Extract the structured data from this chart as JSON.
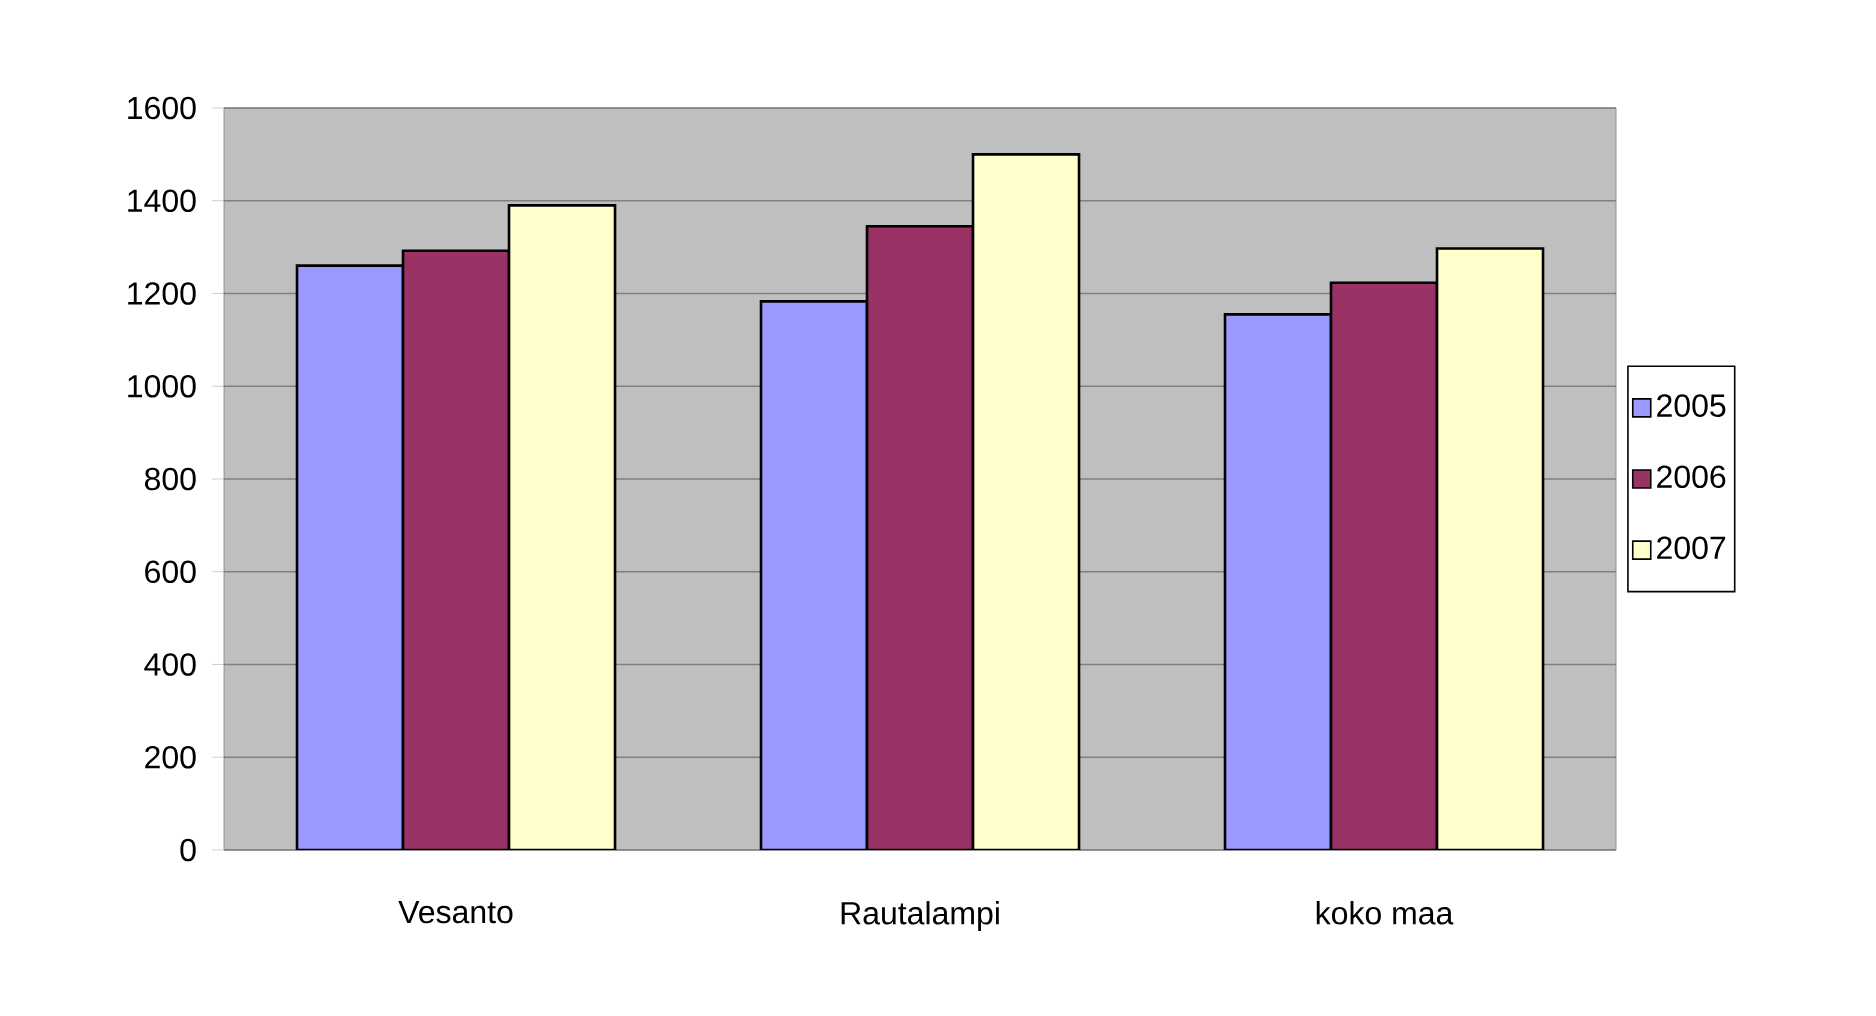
{
  "chart_data": {
    "type": "bar",
    "categories": [
      "Vesanto",
      "Rautalampi",
      "koko maa"
    ],
    "series": [
      {
        "name": "2005",
        "color": "#9999ff",
        "values": [
          1260,
          1183,
          1155
        ]
      },
      {
        "name": "2006",
        "color": "#993366",
        "values": [
          1292,
          1345,
          1223
        ]
      },
      {
        "name": "2007",
        "color": "#ffffcc",
        "values": [
          1390,
          1500,
          1297
        ]
      }
    ],
    "ylim": [
      0,
      1600
    ],
    "yticks": [
      0,
      200,
      400,
      600,
      800,
      1000,
      1200,
      1400,
      1600
    ],
    "grid": "y",
    "legend": "right"
  }
}
